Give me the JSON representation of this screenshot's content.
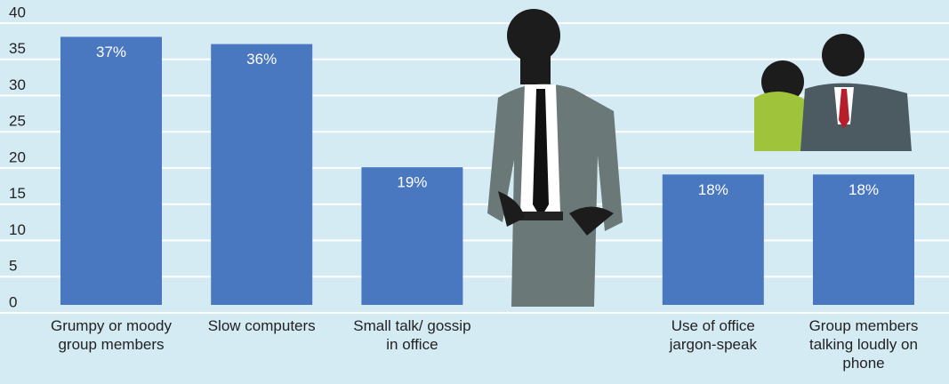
{
  "chart_data": {
    "type": "bar",
    "categories": [
      "Grumpy or moody group members",
      "Slow computers",
      "Small talk/ gossip in office",
      null,
      "Use of office jargon-speak",
      "Group members talking loudly on phone"
    ],
    "values": [
      37,
      36,
      19,
      null,
      18,
      18
    ],
    "value_labels": [
      "37%",
      "36%",
      "19%",
      null,
      "18%",
      "18%"
    ],
    "color": "#4a78c0",
    "ylim": [
      0,
      40
    ],
    "yticks": [
      0,
      5,
      10,
      15,
      20,
      25,
      30,
      35,
      40
    ],
    "grid": true
  }
}
